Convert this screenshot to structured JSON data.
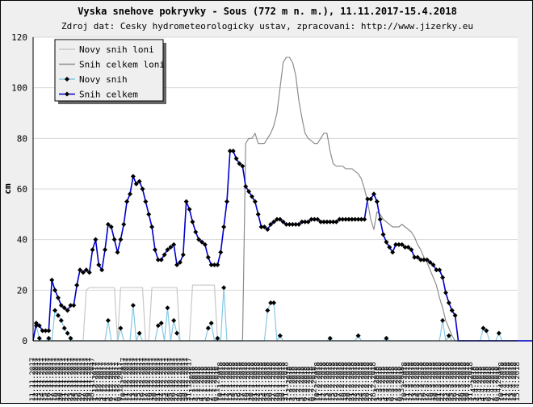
{
  "chart_data": {
    "type": "line",
    "title": "Vyska snehove pokryvky - Sous (772 m n. m.), 11.11.2017-15.4.2018",
    "subtitle": "Zdroj dat: Cesky hydrometeorologicky ustav, zpracovani: http://www.jizerky.eu",
    "ylabel": "cm",
    "ylim": [
      0,
      120
    ],
    "yticks": [
      0,
      20,
      40,
      60,
      80,
      100,
      120
    ],
    "x_start": "2017-11-11",
    "x_end": "2018-04-15",
    "grid": true,
    "legend_position": "top-left",
    "series": [
      {
        "name": "Novy snih loni",
        "color": "#c8c8c8",
        "values": [
          0,
          0,
          0,
          0,
          0,
          0,
          0,
          0,
          0,
          0,
          0,
          0,
          0,
          0,
          0,
          0,
          0,
          20,
          21,
          21,
          21,
          21,
          21,
          21,
          21,
          21,
          21,
          0,
          21,
          21,
          21,
          21,
          21,
          21,
          21,
          21,
          0,
          0,
          21,
          21,
          21,
          21,
          21,
          21,
          21,
          21,
          21,
          0,
          0,
          0,
          0,
          22,
          22,
          22,
          22,
          22,
          22,
          22,
          22,
          0,
          0,
          0,
          0,
          0,
          0,
          0,
          0,
          0,
          0,
          0,
          0,
          0,
          0,
          0,
          0,
          0,
          0,
          0,
          0,
          0,
          0,
          0,
          0,
          0,
          0,
          0,
          0,
          0,
          0,
          0,
          0,
          0,
          0,
          0,
          0,
          0,
          0,
          0,
          0,
          0,
          0,
          0,
          0,
          0,
          0,
          0,
          0,
          0,
          0,
          0,
          0,
          0,
          0,
          0,
          0,
          0,
          0,
          0,
          0,
          0,
          0,
          0,
          0,
          0,
          0,
          0,
          0,
          0,
          0,
          0,
          0,
          0,
          0,
          0,
          0,
          0,
          0,
          0,
          0,
          0,
          0,
          0,
          0,
          0,
          0,
          0,
          0,
          0,
          0,
          0,
          0,
          0,
          0,
          0,
          0,
          0,
          0,
          0,
          0,
          0,
          0,
          0,
          0
        ]
      },
      {
        "name": "Snih celkem loni",
        "color": "#8c8c8c",
        "values": [
          0,
          0,
          0,
          0,
          0,
          0,
          0,
          0,
          0,
          0,
          0,
          0,
          0,
          0,
          0,
          0,
          0,
          0,
          0,
          0,
          0,
          0,
          0,
          0,
          0,
          0,
          0,
          0,
          0,
          0,
          0,
          0,
          0,
          0,
          0,
          0,
          0,
          0,
          0,
          0,
          0,
          0,
          0,
          0,
          0,
          0,
          0,
          0,
          0,
          0,
          0,
          0,
          0,
          0,
          0,
          0,
          0,
          0,
          0,
          0,
          0,
          0,
          0,
          0,
          0,
          0,
          0,
          0,
          78,
          80,
          80,
          82,
          78,
          78,
          78,
          80,
          82,
          85,
          90,
          100,
          110,
          112,
          112,
          110,
          105,
          95,
          88,
          82,
          80,
          79,
          78,
          78,
          80,
          82,
          82,
          75,
          70,
          69,
          69,
          69,
          68,
          68,
          68,
          67,
          66,
          64,
          60,
          55,
          48,
          44,
          51,
          50,
          48,
          47,
          46,
          45,
          45,
          45,
          46,
          45,
          44,
          43,
          41,
          38,
          36,
          33,
          31,
          28,
          25,
          22,
          17,
          13,
          8,
          5,
          2,
          0,
          0,
          0,
          0,
          0,
          0,
          0,
          0,
          0,
          0,
          0,
          0,
          0,
          0,
          0,
          0,
          0,
          0,
          0,
          0,
          0,
          0,
          0,
          0,
          0,
          0,
          0,
          0,
          0,
          0,
          0,
          0,
          0,
          0,
          0,
          0,
          0
        ]
      },
      {
        "name": "Novy snih",
        "color": "#87c8e6",
        "values": [
          0,
          6,
          1,
          0,
          0,
          1,
          0,
          12,
          10,
          8,
          5,
          3,
          1,
          0,
          0,
          0,
          0,
          0,
          0,
          0,
          0,
          0,
          0,
          0,
          8,
          0,
          0,
          0,
          5,
          0,
          0,
          0,
          14,
          0,
          3,
          0,
          0,
          0,
          0,
          0,
          6,
          7,
          0,
          13,
          0,
          8,
          3,
          0,
          0,
          0,
          0,
          0,
          0,
          0,
          0,
          0,
          5,
          7,
          0,
          1,
          0,
          21,
          0,
          0,
          0,
          0,
          0,
          0,
          0,
          0,
          0,
          0,
          0,
          0,
          0,
          12,
          15,
          15,
          0,
          2,
          0,
          0,
          0,
          0,
          0,
          0,
          0,
          0,
          0,
          0,
          0,
          0,
          0,
          0,
          0,
          1,
          0,
          0,
          0,
          0,
          0,
          0,
          0,
          0,
          2,
          0,
          0,
          0,
          0,
          0,
          0,
          0,
          0,
          1,
          0,
          0,
          0,
          0,
          0,
          0,
          0,
          0,
          0,
          0,
          0,
          0,
          0,
          0,
          0,
          0,
          0,
          8,
          0,
          2,
          0,
          0,
          0,
          0,
          0,
          0,
          0,
          0,
          0,
          0,
          5,
          4,
          0,
          0,
          0,
          3,
          0,
          0,
          0,
          0,
          0,
          0,
          0,
          0,
          0,
          0,
          0,
          0,
          0,
          0,
          0,
          0
        ]
      },
      {
        "name": "Snih celkem",
        "color": "#0000cc",
        "values": [
          0,
          7,
          6,
          4,
          4,
          4,
          24,
          20,
          17,
          14,
          13,
          12,
          14,
          14,
          22,
          28,
          27,
          28,
          27,
          36,
          40,
          30,
          28,
          36,
          46,
          45,
          40,
          35,
          40,
          46,
          55,
          58,
          65,
          62,
          63,
          60,
          55,
          50,
          45,
          36,
          32,
          32,
          34,
          36,
          37,
          38,
          30,
          31,
          34,
          55,
          52,
          47,
          43,
          40,
          39,
          38,
          33,
          30,
          30,
          30,
          35,
          45,
          55,
          75,
          75,
          72,
          70,
          69,
          61,
          59,
          57,
          55,
          50,
          45,
          45,
          44,
          46,
          47,
          48,
          48,
          47,
          46,
          46,
          46,
          46,
          46,
          47,
          47,
          47,
          48,
          48,
          48,
          47,
          47,
          47,
          47,
          47,
          47,
          48,
          48,
          48,
          48,
          48,
          48,
          48,
          48,
          48,
          56,
          56,
          58,
          55,
          48,
          42,
          39,
          37,
          35,
          38,
          38,
          38,
          37,
          37,
          36,
          33,
          33,
          32,
          32,
          32,
          31,
          30,
          28,
          28,
          25,
          19,
          15,
          12,
          10,
          0,
          0,
          0,
          0,
          0,
          0,
          0,
          0,
          0,
          0,
          0,
          0,
          0,
          0,
          0,
          0,
          0,
          0,
          0,
          0,
          0,
          0,
          0,
          0,
          0,
          0,
          0,
          0,
          0,
          0
        ]
      }
    ]
  }
}
